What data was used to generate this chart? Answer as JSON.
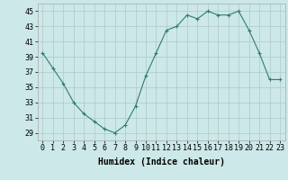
{
  "x": [
    0,
    1,
    2,
    3,
    4,
    5,
    6,
    7,
    8,
    9,
    10,
    11,
    12,
    13,
    14,
    15,
    16,
    17,
    18,
    19,
    20,
    21,
    22,
    23
  ],
  "y": [
    39.5,
    37.5,
    35.5,
    33,
    31.5,
    30.5,
    29.5,
    29,
    30,
    32.5,
    36.5,
    39.5,
    42.5,
    43,
    44.5,
    44,
    45,
    44.5,
    44.5,
    45,
    42.5,
    39.5,
    36,
    36
  ],
  "line_color": "#2e7d6e",
  "marker": "+",
  "bg_color": "#cce8e8",
  "grid_color": "#b0c8c8",
  "xlabel": "Humidex (Indice chaleur)",
  "ylim": [
    28,
    46
  ],
  "yticks": [
    29,
    31,
    33,
    35,
    37,
    39,
    41,
    43,
    45
  ],
  "xticks": [
    0,
    1,
    2,
    3,
    4,
    5,
    6,
    7,
    8,
    9,
    10,
    11,
    12,
    13,
    14,
    15,
    16,
    17,
    18,
    19,
    20,
    21,
    22,
    23
  ],
  "label_fontsize": 7,
  "tick_fontsize": 6
}
